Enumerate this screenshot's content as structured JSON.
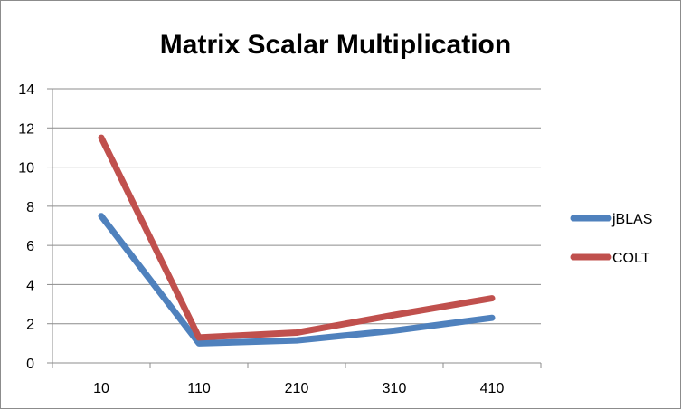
{
  "chart_data": {
    "type": "line",
    "title": "Matrix Scalar Multiplication",
    "xlabel": "",
    "ylabel": "",
    "categories": [
      "10",
      "110",
      "210",
      "310",
      "410"
    ],
    "series": [
      {
        "name": "jBLAS",
        "color": "#4f81bd",
        "values": [
          7.5,
          1.0,
          1.15,
          1.65,
          2.3
        ]
      },
      {
        "name": "COLT",
        "color": "#c0504d",
        "values": [
          11.5,
          1.3,
          1.55,
          2.45,
          3.3
        ]
      }
    ],
    "ylim": [
      0,
      14
    ],
    "yticks": [
      0,
      2,
      4,
      6,
      8,
      10,
      12,
      14
    ],
    "grid": true,
    "legend": "right"
  }
}
